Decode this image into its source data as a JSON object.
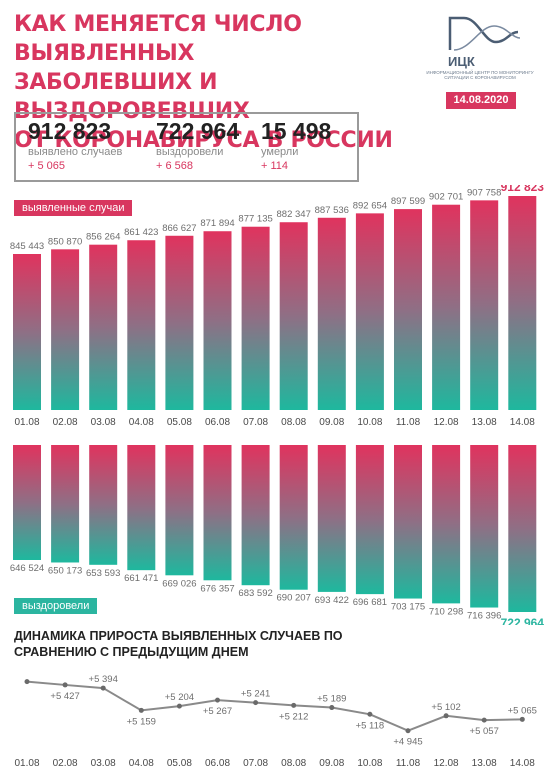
{
  "header": {
    "title_lines": [
      "КАК МЕНЯЕТСЯ ЧИСЛО ВЫЯВЛЕННЫХ",
      "ЗАБОЛЕВШИХ И ВЫЗДОРОВЕВШИХ",
      "ОТ КОРОНАВИРУСА В РОССИИ"
    ],
    "logo_text": "ИЦК",
    "logo_subtitle": "ИНФОРМАЦИОННЫЙ ЦЕНТР ПО МОНИТОРИНГУ СИТУАЦИИ С КОРОНАВИРУСОМ",
    "date": "14.08.2020"
  },
  "stats": [
    {
      "value": "912 823",
      "label": "выявлено случаев",
      "delta": "+ 5 065"
    },
    {
      "value": "722 964",
      "label": "выздоровели",
      "delta": "+ 6 568"
    },
    {
      "value": "15 498",
      "label": "умерли",
      "delta": "+ 114"
    }
  ],
  "colors": {
    "accent": "#d8365f",
    "teal": "#2bb5a0",
    "gray": "#6e6e6e"
  },
  "chart_data": [
    {
      "type": "bar",
      "title": "выявленные случаи",
      "categories": [
        "01.08",
        "02.08",
        "03.08",
        "04.08",
        "05.08",
        "06.08",
        "07.08",
        "08.08",
        "09.08",
        "10.08",
        "11.08",
        "12.08",
        "13.08",
        "14.08"
      ],
      "values": [
        845443,
        850870,
        856264,
        861423,
        866627,
        871894,
        877135,
        882347,
        887536,
        892654,
        897599,
        902701,
        907758,
        912823
      ],
      "labels": [
        "845 443",
        "850 870",
        "856 264",
        "861 423",
        "866 627",
        "871 894",
        "877 135",
        "882 347",
        "887 536",
        "892 654",
        "897 599",
        "902 701",
        "907 758",
        "912 823"
      ]
    },
    {
      "type": "bar",
      "title": "выздоровели",
      "categories": [
        "01.08",
        "02.08",
        "03.08",
        "04.08",
        "05.08",
        "06.08",
        "07.08",
        "08.08",
        "09.08",
        "10.08",
        "11.08",
        "12.08",
        "13.08",
        "14.08"
      ],
      "values": [
        646524,
        650173,
        653593,
        661471,
        669026,
        676357,
        683592,
        690207,
        693422,
        696681,
        703175,
        710298,
        716396,
        722964
      ],
      "labels": [
        "646 524",
        "650 173",
        "653 593",
        "661 471",
        "669 026",
        "676 357",
        "683 592",
        "690 207",
        "693 422",
        "696 681",
        "703 175",
        "710 298",
        "716 396",
        "722 964"
      ]
    },
    {
      "type": "line",
      "title": "ДИНАМИКА ПРИРОСТА ВЫЯВЛЕННЫХ СЛУЧАЕВ ПО СРАВНЕНИЮ С ПРЕДЫДУЩИМ ДНЕМ",
      "categories": [
        "01.08",
        "02.08",
        "03.08",
        "04.08",
        "05.08",
        "06.08",
        "07.08",
        "08.08",
        "09.08",
        "10.08",
        "11.08",
        "12.08",
        "13.08",
        "14.08"
      ],
      "values": [
        5462,
        5427,
        5394,
        5159,
        5204,
        5267,
        5241,
        5212,
        5189,
        5118,
        4945,
        5102,
        5057,
        5065
      ],
      "labels": [
        "",
        "+5 427",
        "+5 394",
        "+5 159",
        "+5 204",
        "+5 267",
        "+5 241",
        "+5 212",
        "+5 189",
        "+5 118",
        "+4 945",
        "+5 102",
        "+5 057",
        "+5 065"
      ]
    }
  ]
}
